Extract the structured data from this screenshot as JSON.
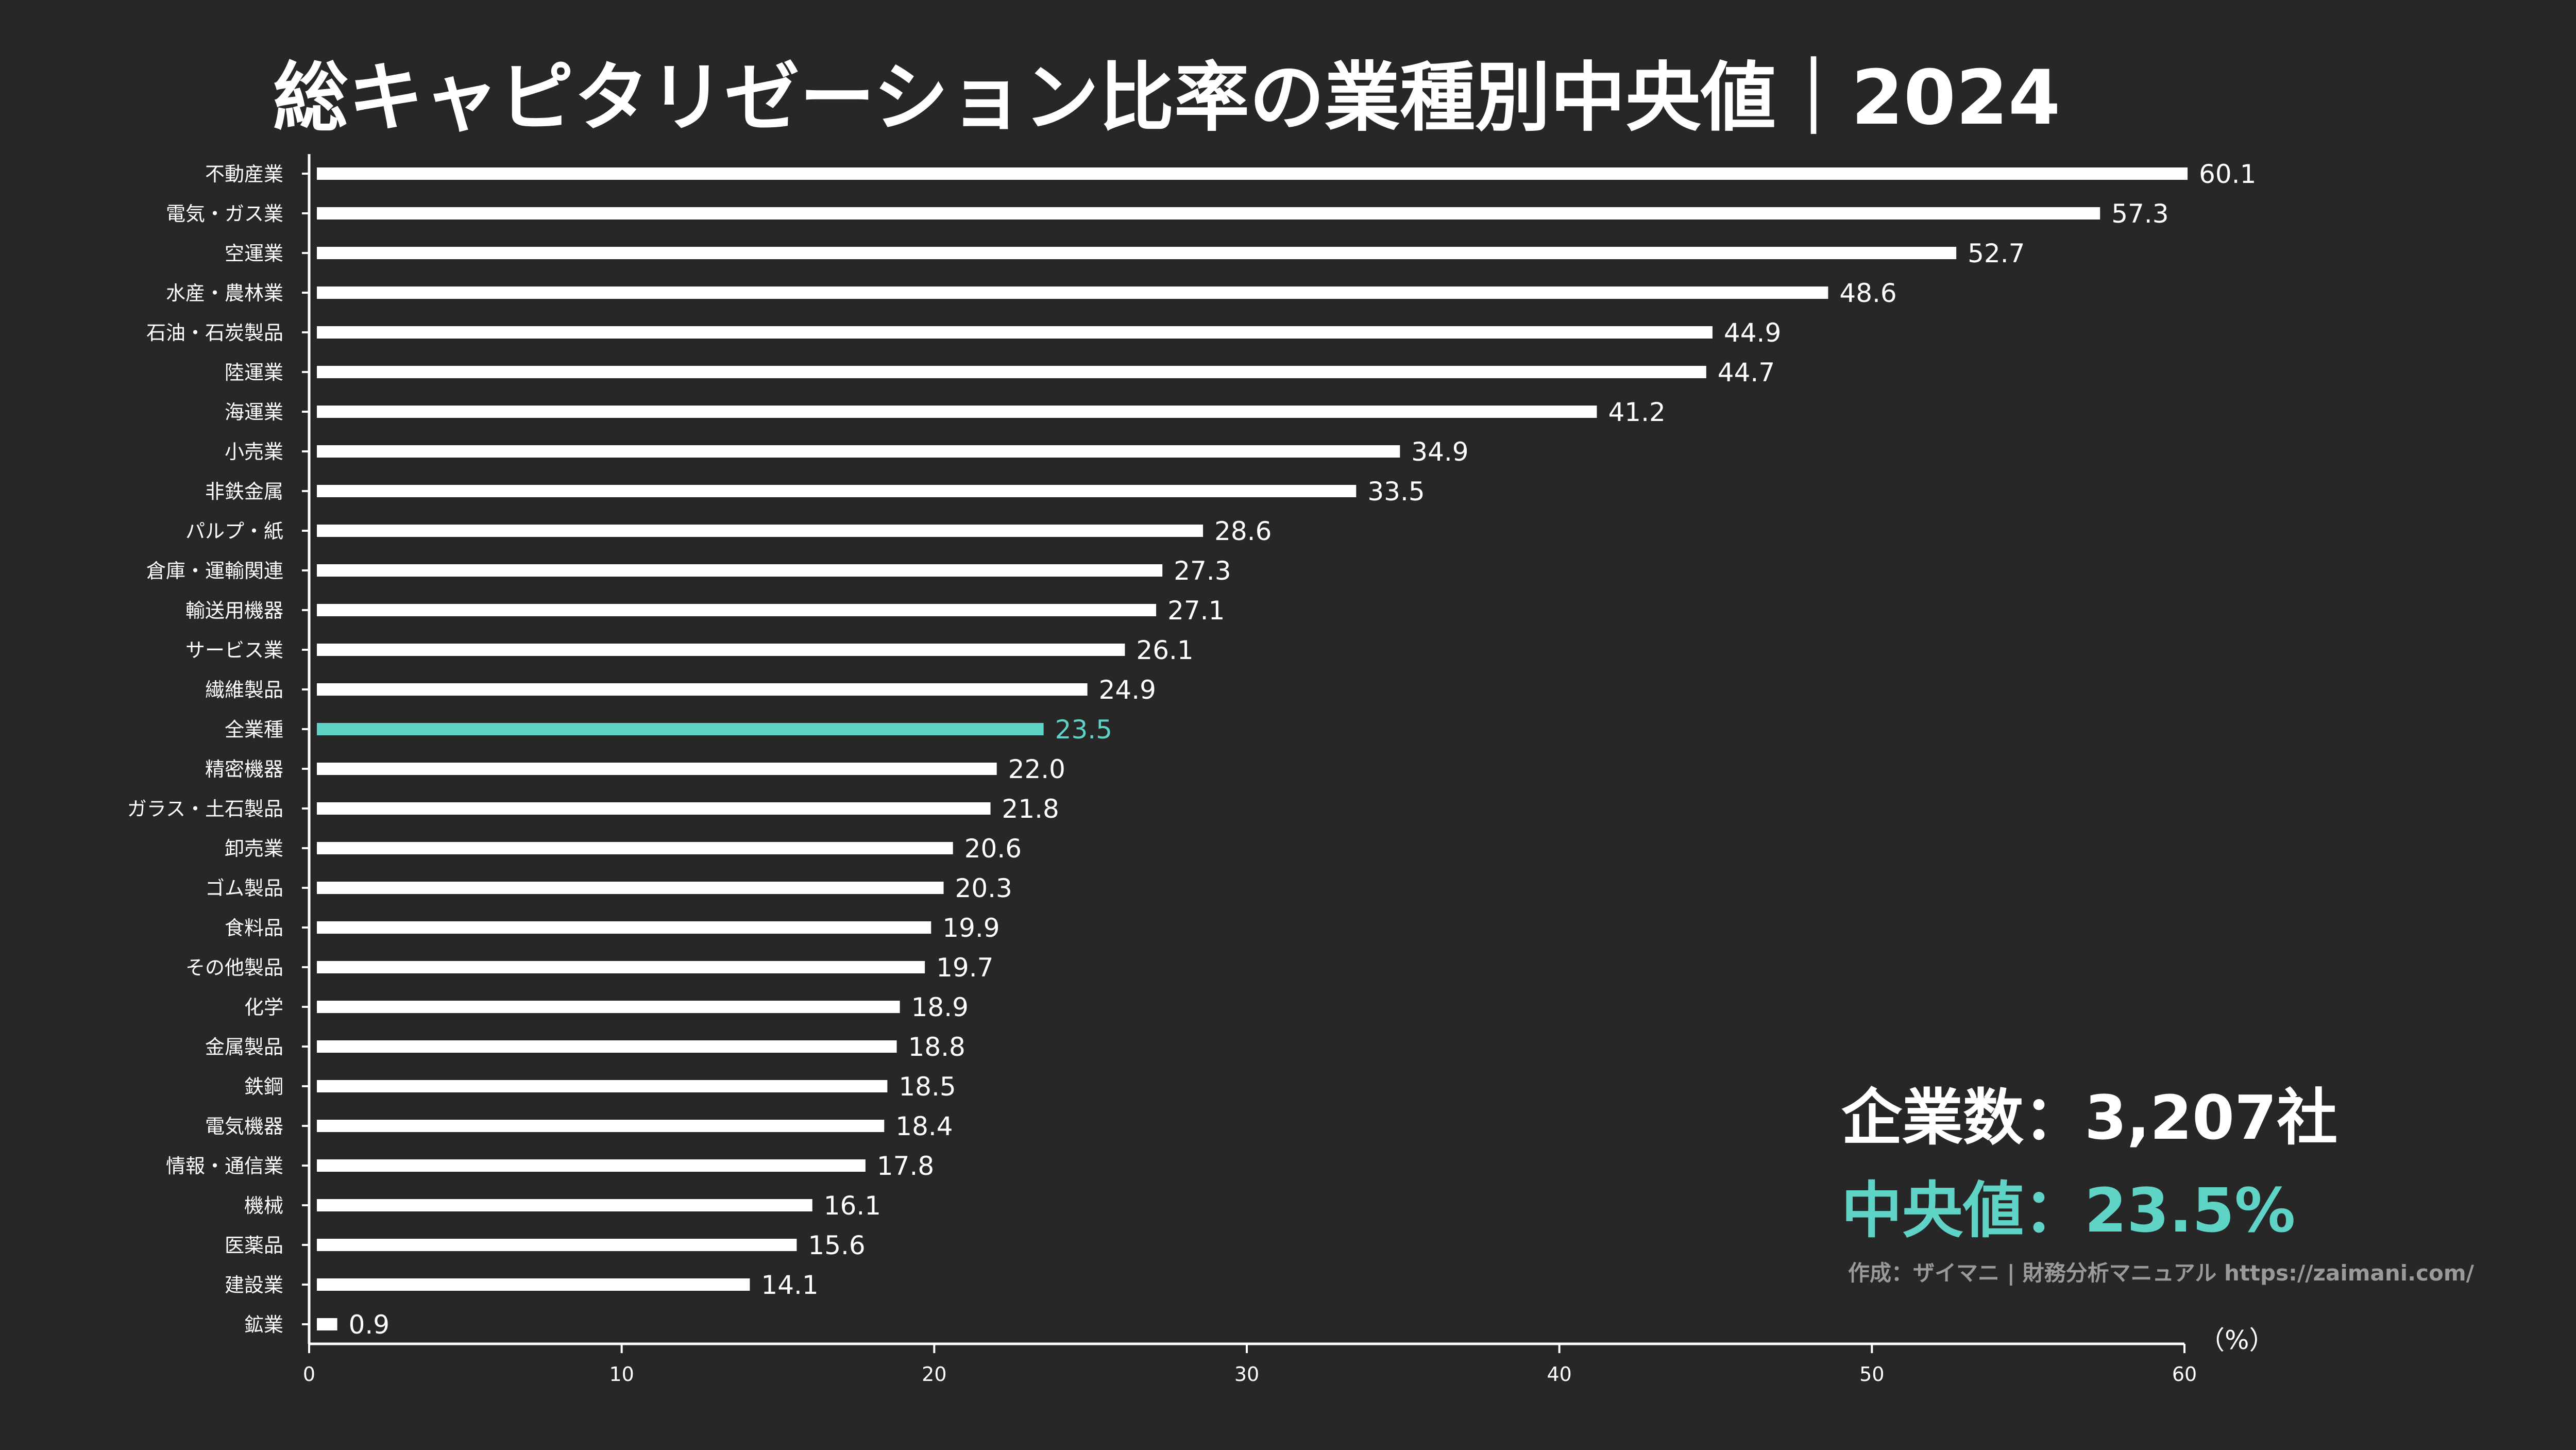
{
  "title": "総キャピタリゼーション比率の業種別中央値｜2024",
  "stats": {
    "companies": "企業数：3,207社",
    "median": "中央値：23.5%"
  },
  "credit": "作成：ザイマニ | 財務分析マニュアル https://zaimani.com/",
  "colors": {
    "background": "#272727",
    "bar": "#ffffff",
    "highlight": "#5fd3c6",
    "text": "#ffffff"
  },
  "chart_data": {
    "type": "bar",
    "orientation": "horizontal",
    "title": "総キャピタリゼーション比率の業種別中央値｜2024",
    "xlabel": "（%）",
    "xlim": [
      0,
      60
    ],
    "xticks": [
      0,
      10,
      20,
      30,
      40,
      50,
      60
    ],
    "highlight": "全業種",
    "grid": false,
    "categories": [
      "不動産業",
      "電気・ガス業",
      "空運業",
      "水産・農林業",
      "石油・石炭製品",
      "陸運業",
      "海運業",
      "小売業",
      "非鉄金属",
      "パルプ・紙",
      "倉庫・運輸関連",
      "輸送用機器",
      "サービス業",
      "繊維製品",
      "全業種",
      "精密機器",
      "ガラス・土石製品",
      "卸売業",
      "ゴム製品",
      "食料品",
      "その他製品",
      "化学",
      "金属製品",
      "鉄鋼",
      "電気機器",
      "情報・通信業",
      "機械",
      "医薬品",
      "建設業",
      "鉱業"
    ],
    "values": [
      60.1,
      57.3,
      52.7,
      48.6,
      44.9,
      44.7,
      41.2,
      34.9,
      33.5,
      28.6,
      27.3,
      27.1,
      26.1,
      24.9,
      23.5,
      22.0,
      21.8,
      20.6,
      20.3,
      19.9,
      19.7,
      18.9,
      18.8,
      18.5,
      18.4,
      17.8,
      16.1,
      15.6,
      14.1,
      0.9
    ],
    "value_labels": [
      "60.1",
      "57.3",
      "52.7",
      "48.6",
      "44.9",
      "44.7",
      "41.2",
      "34.9",
      "33.5",
      "28.6",
      "27.3",
      "27.1",
      "26.1",
      "24.9",
      "23.5",
      "22.0",
      "21.8",
      "20.6",
      "20.3",
      "19.9",
      "19.7",
      "18.9",
      "18.8",
      "18.5",
      "18.4",
      "17.8",
      "16.1",
      "15.6",
      "14.1",
      "0.9"
    ]
  }
}
